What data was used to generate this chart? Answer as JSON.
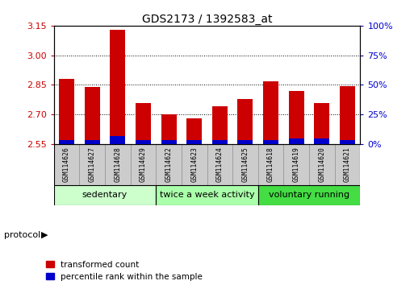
{
  "title": "GDS2173 / 1392583_at",
  "samples": [
    "GSM114626",
    "GSM114627",
    "GSM114628",
    "GSM114629",
    "GSM114622",
    "GSM114623",
    "GSM114624",
    "GSM114625",
    "GSM114618",
    "GSM114619",
    "GSM114620",
    "GSM114621"
  ],
  "red_values": [
    2.88,
    2.84,
    3.13,
    2.76,
    2.7,
    2.68,
    2.74,
    2.78,
    2.87,
    2.82,
    2.76,
    2.845
  ],
  "blue_values": [
    0.02,
    0.02,
    0.04,
    0.02,
    0.02,
    0.02,
    0.02,
    0.02,
    0.02,
    0.03,
    0.03,
    0.02
  ],
  "baseline": 2.55,
  "ylim_left": [
    2.55,
    3.15
  ],
  "ylim_right": [
    0,
    100
  ],
  "yticks_left": [
    2.55,
    2.7,
    2.85,
    3.0,
    3.15
  ],
  "yticks_right": [
    0,
    25,
    50,
    75,
    100
  ],
  "ytick_labels_right": [
    "0%",
    "25%",
    "50%",
    "75%",
    "100%"
  ],
  "groups": [
    {
      "label": "sedentary",
      "start": 0,
      "end": 3,
      "color": "#ccffcc"
    },
    {
      "label": "twice a week activity",
      "start": 4,
      "end": 7,
      "color": "#aaffaa"
    },
    {
      "label": "voluntary running",
      "start": 8,
      "end": 11,
      "color": "#44dd44"
    }
  ],
  "legend_red_label": "transformed count",
  "legend_blue_label": "percentile rank within the sample",
  "protocol_label": "protocol",
  "bar_width": 0.6,
  "red_color": "#cc0000",
  "blue_color": "#0000cc",
  "bg_color": "#ffffff",
  "tick_label_color_left": "#cc0000",
  "tick_label_color_right": "#0000cc",
  "sample_box_color": "#cccccc",
  "sample_box_edge": "#999999"
}
